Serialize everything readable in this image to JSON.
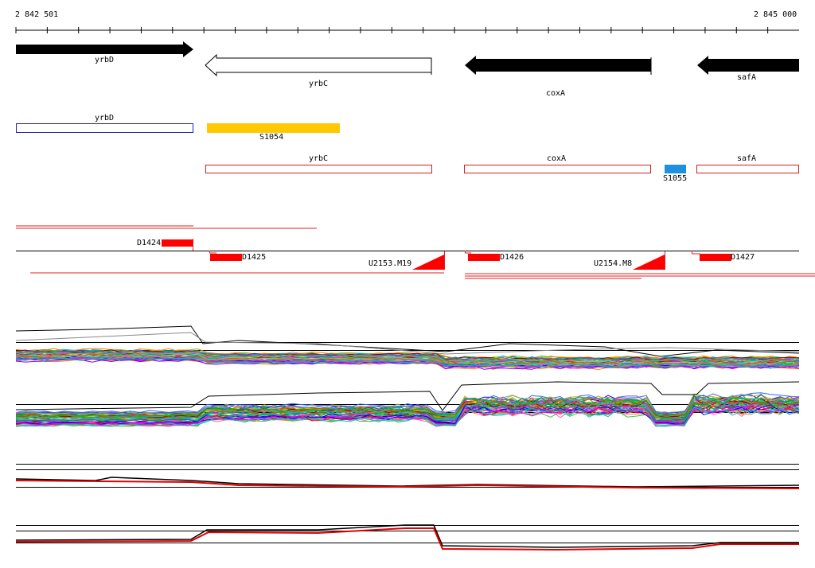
{
  "ruler": {
    "start_label": "2 842 501",
    "end_label": "2 845 000"
  },
  "genes": [
    {
      "name": "yrbD",
      "style": "filled",
      "direction": "right"
    },
    {
      "name": "yrbC",
      "style": "open",
      "direction": "left"
    },
    {
      "name": "coxA",
      "style": "filled",
      "direction": "left"
    },
    {
      "name": "safA",
      "style": "filled",
      "direction": "left"
    }
  ],
  "annotations": {
    "yrbD_box": "yrbD",
    "S1054": "S1054",
    "yrbC_box": "yrbC",
    "coxA_box": "coxA",
    "S1055": "S1055",
    "safA_box": "safA"
  },
  "features": {
    "D1424": "D1424",
    "D1425": "D1425",
    "U2153": "U2153.M19",
    "D1426": "D1426",
    "U2154": "U2154.M8",
    "D1427": "D1427"
  },
  "colors": {
    "gene_fill": "#000000",
    "yrbD_box": "#2020b0",
    "S1054": "#ffc800",
    "S1055": "#1e90e0",
    "feature": "#ff0000"
  }
}
